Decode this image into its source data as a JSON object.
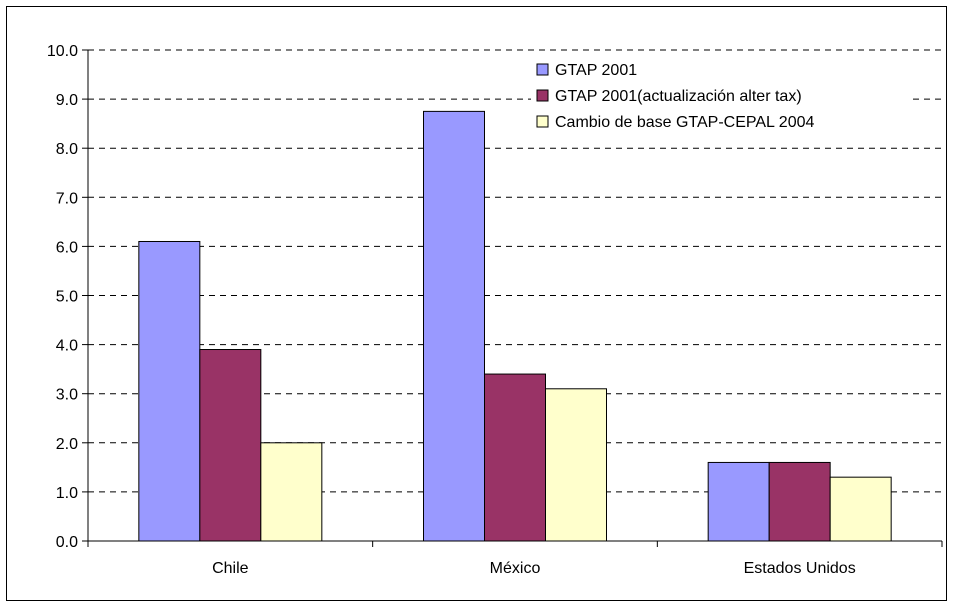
{
  "chart_data": {
    "type": "bar",
    "title": "",
    "xlabel": "",
    "ylabel": "",
    "categories": [
      "Chile",
      "México",
      "Estados Unidos"
    ],
    "series": [
      {
        "name": "GTAP 2001",
        "values": [
          6.1,
          8.75,
          1.6
        ],
        "color": "#9999ff"
      },
      {
        "name": "GTAP 2001(actualización alter tax)",
        "values": [
          3.9,
          3.4,
          1.6
        ],
        "color": "#993366"
      },
      {
        "name": "Cambio de base GTAP-CEPAL 2004",
        "values": [
          2.0,
          3.1,
          1.3
        ],
        "color": "#ffffcc"
      }
    ],
    "ylim": [
      0,
      10
    ],
    "ytick_labels": [
      "0.0",
      "1.0",
      "2.0",
      "3.0",
      "4.0",
      "5.0",
      "6.0",
      "7.0",
      "8.0",
      "9.0",
      "10.0"
    ],
    "grid": true,
    "legend_position": "top-right"
  }
}
